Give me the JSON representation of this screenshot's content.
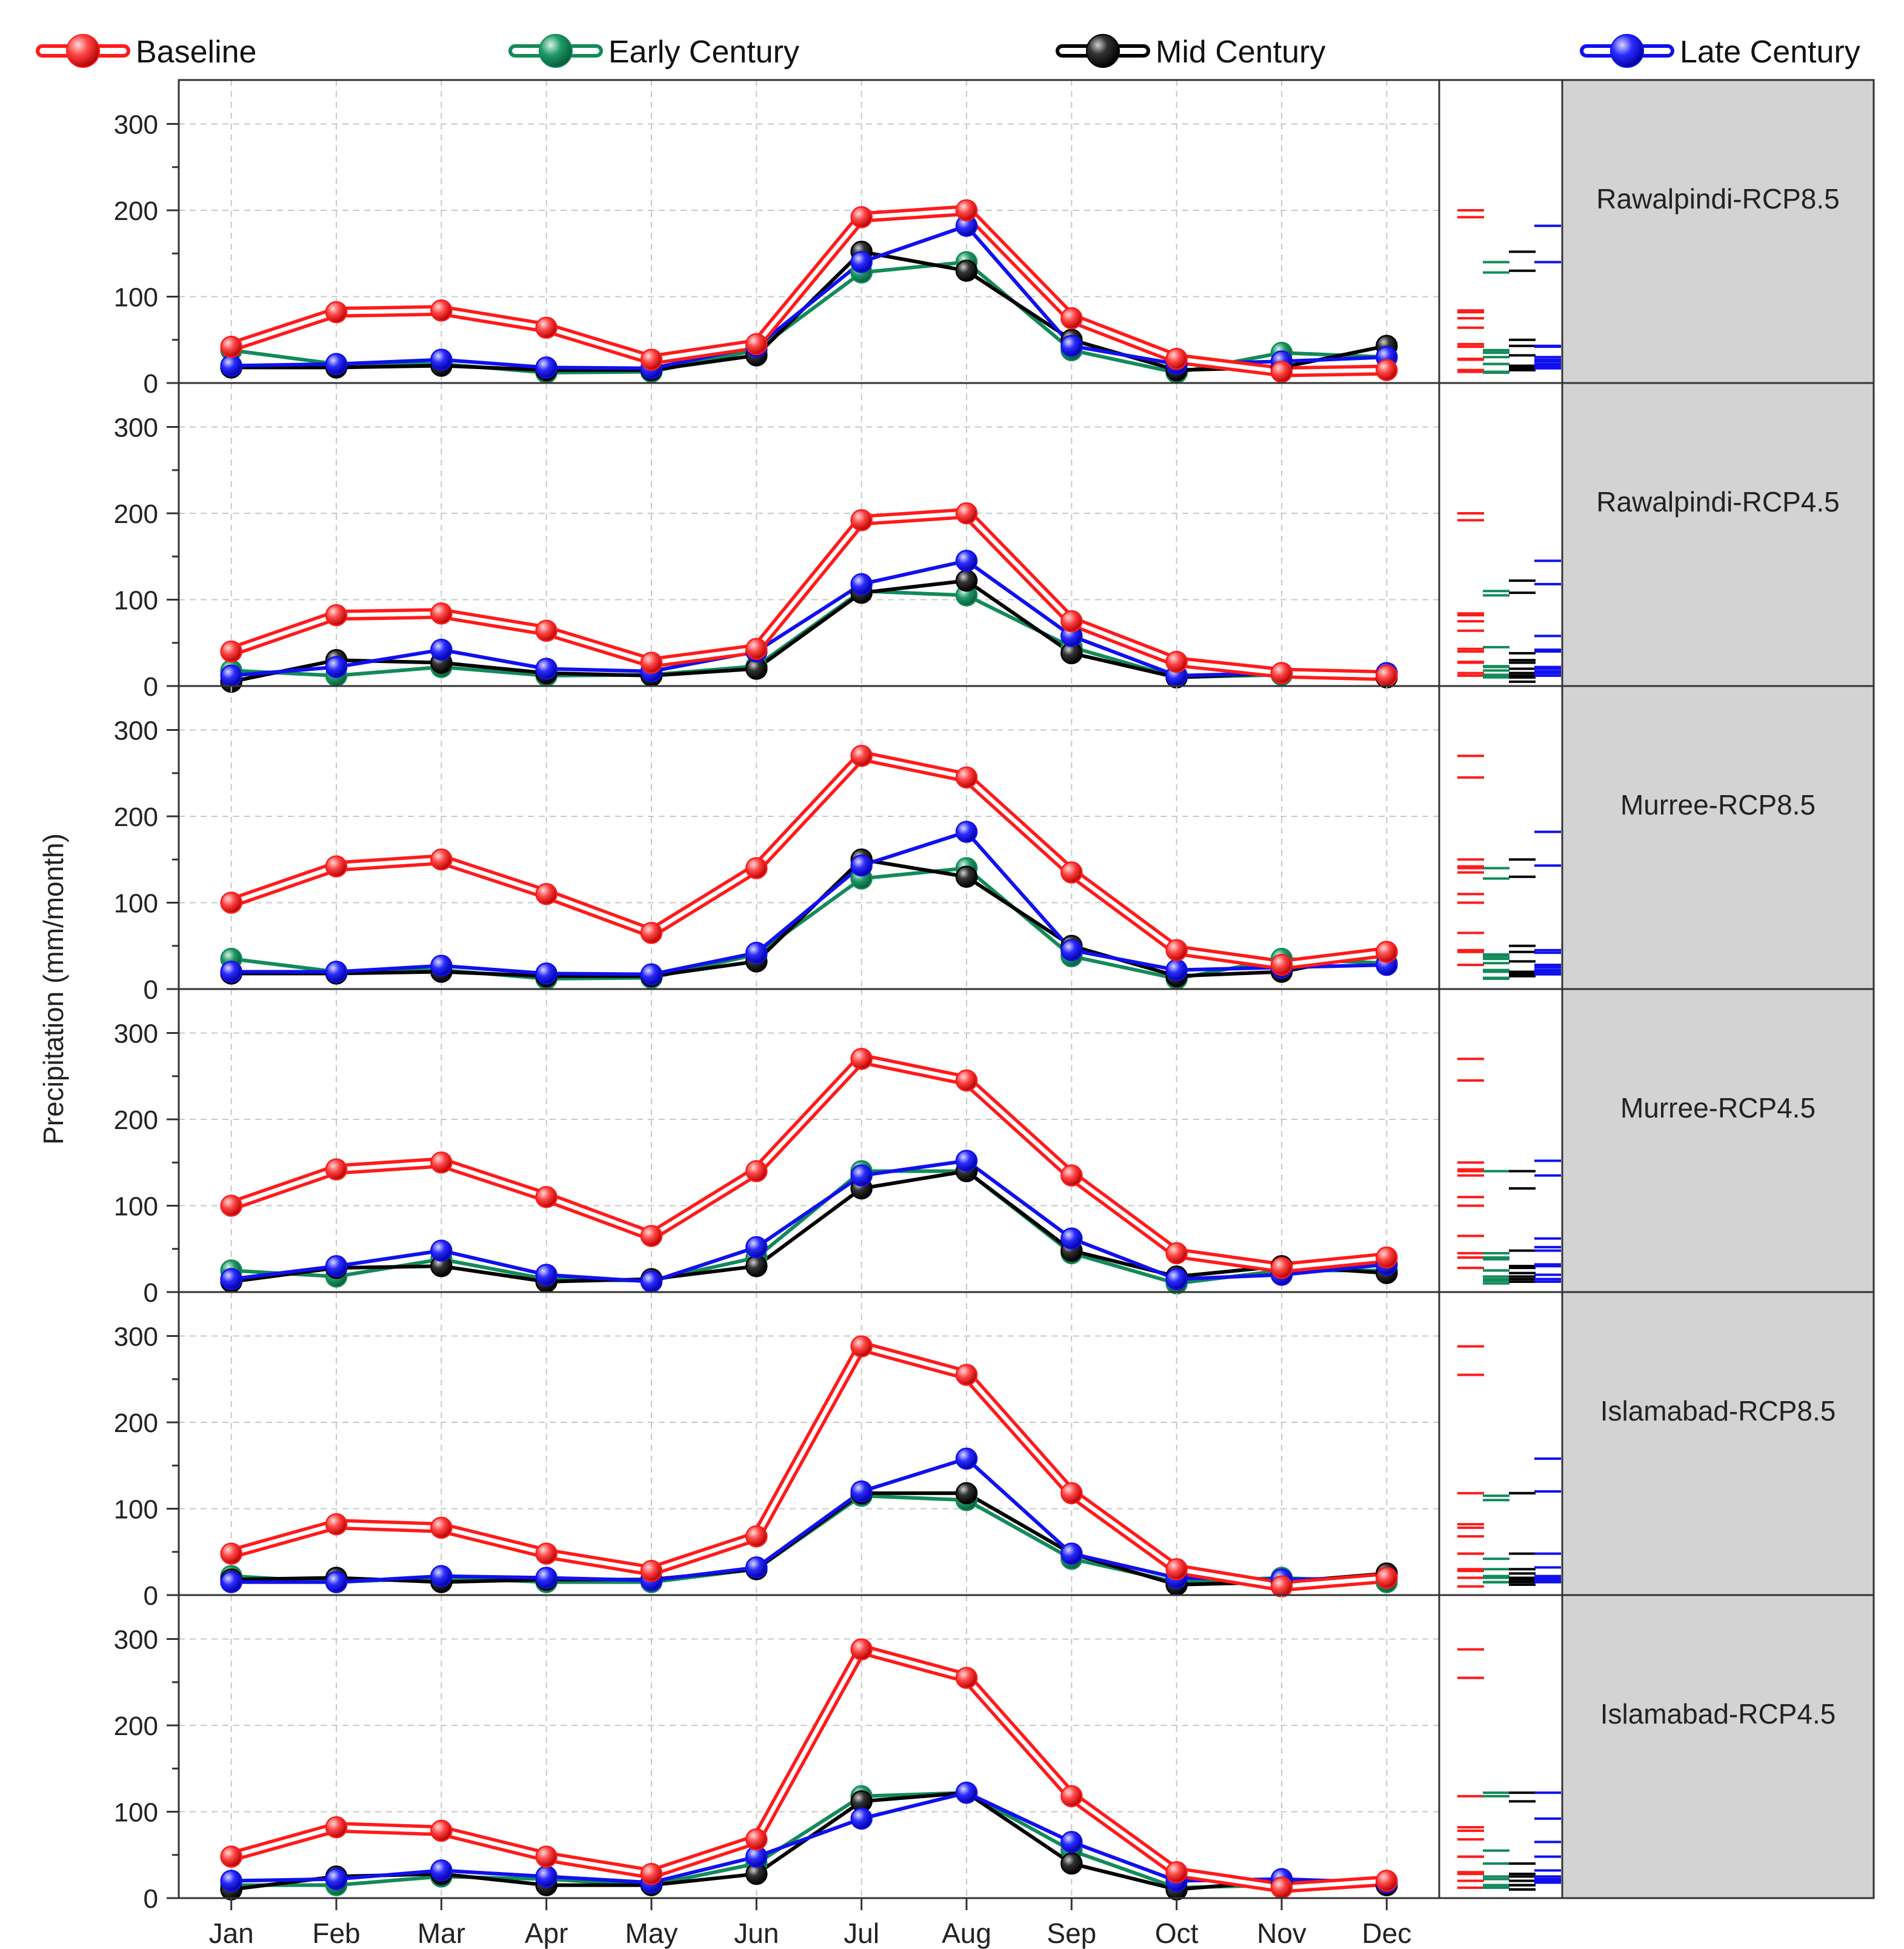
{
  "chart_data": {
    "type": "line",
    "ylabel": "Precipitation (mm/month)",
    "xlabel": "",
    "categories": [
      "Jan",
      "Feb",
      "Mar",
      "Apr",
      "May",
      "Jun",
      "Jul",
      "Aug",
      "Sep",
      "Oct",
      "Nov",
      "Dec"
    ],
    "ylim": [
      0,
      350
    ],
    "yticks": [
      0,
      100,
      200,
      300
    ],
    "grid": "dashed-vertical",
    "legend_position": "top",
    "legend": [
      {
        "name": "Baseline",
        "color": "#ff1a1a"
      },
      {
        "name": "Early Century",
        "color": "#128a5a"
      },
      {
        "name": "Mid Century",
        "color": "#000000"
      },
      {
        "name": "Late Century",
        "color": "#1010ee"
      }
    ],
    "panels": [
      {
        "label": "Rawalpindi-RCP8.5",
        "series": [
          {
            "name": "Baseline",
            "values": [
              42,
              82,
              84,
              64,
              27,
              45,
              192,
              200,
              75,
              28,
              13,
              15
            ]
          },
          {
            "name": "Early Century",
            "values": [
              38,
              22,
              22,
              12,
              13,
              38,
              128,
              140,
              38,
              12,
              35,
              30
            ]
          },
          {
            "name": "Mid Century",
            "values": [
              18,
              18,
              20,
              15,
              15,
              32,
              152,
              130,
              50,
              15,
              18,
              43
            ]
          },
          {
            "name": "Late Century",
            "values": [
              20,
              22,
              27,
              18,
              17,
              42,
              140,
              182,
              43,
              22,
              25,
              30
            ]
          }
        ]
      },
      {
        "label": "Rawalpindi-RCP4.5",
        "series": [
          {
            "name": "Baseline",
            "values": [
              40,
              82,
              84,
              64,
              27,
              43,
              192,
              200,
              75,
              28,
              15,
              12
            ]
          },
          {
            "name": "Early Century",
            "values": [
              18,
              12,
              22,
              12,
              13,
              23,
              110,
              105,
              45,
              10,
              13,
              13
            ]
          },
          {
            "name": "Mid Century",
            "values": [
              5,
              30,
              27,
              15,
              12,
              20,
              108,
              122,
              38,
              10,
              15,
              10
            ]
          },
          {
            "name": "Late Century",
            "values": [
              12,
              22,
              42,
              20,
              17,
              40,
              118,
              145,
              58,
              12,
              15,
              15
            ]
          }
        ]
      },
      {
        "label": "Murree-RCP8.5",
        "series": [
          {
            "name": "Baseline",
            "values": [
              100,
              142,
              150,
              110,
              65,
              140,
              270,
              245,
              135,
              45,
              28,
              43
            ]
          },
          {
            "name": "Early Century",
            "values": [
              35,
              20,
              22,
              12,
              13,
              40,
              128,
              140,
              38,
              12,
              35,
              30
            ]
          },
          {
            "name": "Mid Century",
            "values": [
              18,
              18,
              20,
              15,
              15,
              32,
              150,
              130,
              50,
              15,
              20,
              43
            ]
          },
          {
            "name": "Late Century",
            "values": [
              20,
              20,
              27,
              18,
              17,
              42,
              143,
              182,
              45,
              22,
              25,
              28
            ]
          }
        ]
      },
      {
        "label": "Murree-RCP4.5",
        "series": [
          {
            "name": "Baseline",
            "values": [
              100,
              142,
              150,
              110,
              65,
              140,
              270,
              245,
              135,
              45,
              28,
              40
            ]
          },
          {
            "name": "Early Century",
            "values": [
              25,
              18,
              38,
              15,
              13,
              40,
              140,
              140,
              45,
              10,
              25,
              25
            ]
          },
          {
            "name": "Mid Century",
            "values": [
              12,
              28,
              30,
              12,
              15,
              30,
              120,
              140,
              48,
              18,
              30,
              22
            ]
          },
          {
            "name": "Late Century",
            "values": [
              15,
              30,
              48,
              20,
              12,
              52,
              135,
              152,
              62,
              15,
              20,
              32
            ]
          }
        ]
      },
      {
        "label": "Islamabad-RCP8.5",
        "series": [
          {
            "name": "Baseline",
            "values": [
              48,
              82,
              78,
              48,
              28,
              68,
              288,
              255,
              118,
              30,
              10,
              20
            ]
          },
          {
            "name": "Early Century",
            "values": [
              22,
              15,
              20,
              15,
              15,
              30,
              115,
              110,
              42,
              15,
              20,
              15
            ]
          },
          {
            "name": "Mid Century",
            "values": [
              18,
              20,
              15,
              18,
              18,
              30,
              118,
              118,
              48,
              12,
              15,
              25
            ]
          },
          {
            "name": "Late Century",
            "values": [
              15,
              15,
              22,
              20,
              17,
              32,
              120,
              158,
              48,
              20,
              18,
              20
            ]
          }
        ]
      },
      {
        "label": "Islamabad-RCP4.5",
        "series": [
          {
            "name": "Baseline",
            "values": [
              48,
              82,
              78,
              48,
              28,
              68,
              288,
              255,
              118,
              30,
              12,
              20
            ]
          },
          {
            "name": "Early Century",
            "values": [
              15,
              15,
              25,
              22,
              15,
              40,
              118,
              122,
              55,
              12,
              15,
              15
            ]
          },
          {
            "name": "Mid Century",
            "values": [
              10,
              25,
              28,
              15,
              15,
              28,
              112,
              122,
              40,
              10,
              20,
              15
            ]
          },
          {
            "name": "Late Century",
            "values": [
              20,
              22,
              32,
              25,
              18,
              48,
              92,
              122,
              65,
              20,
              22,
              18
            ]
          }
        ]
      }
    ]
  }
}
